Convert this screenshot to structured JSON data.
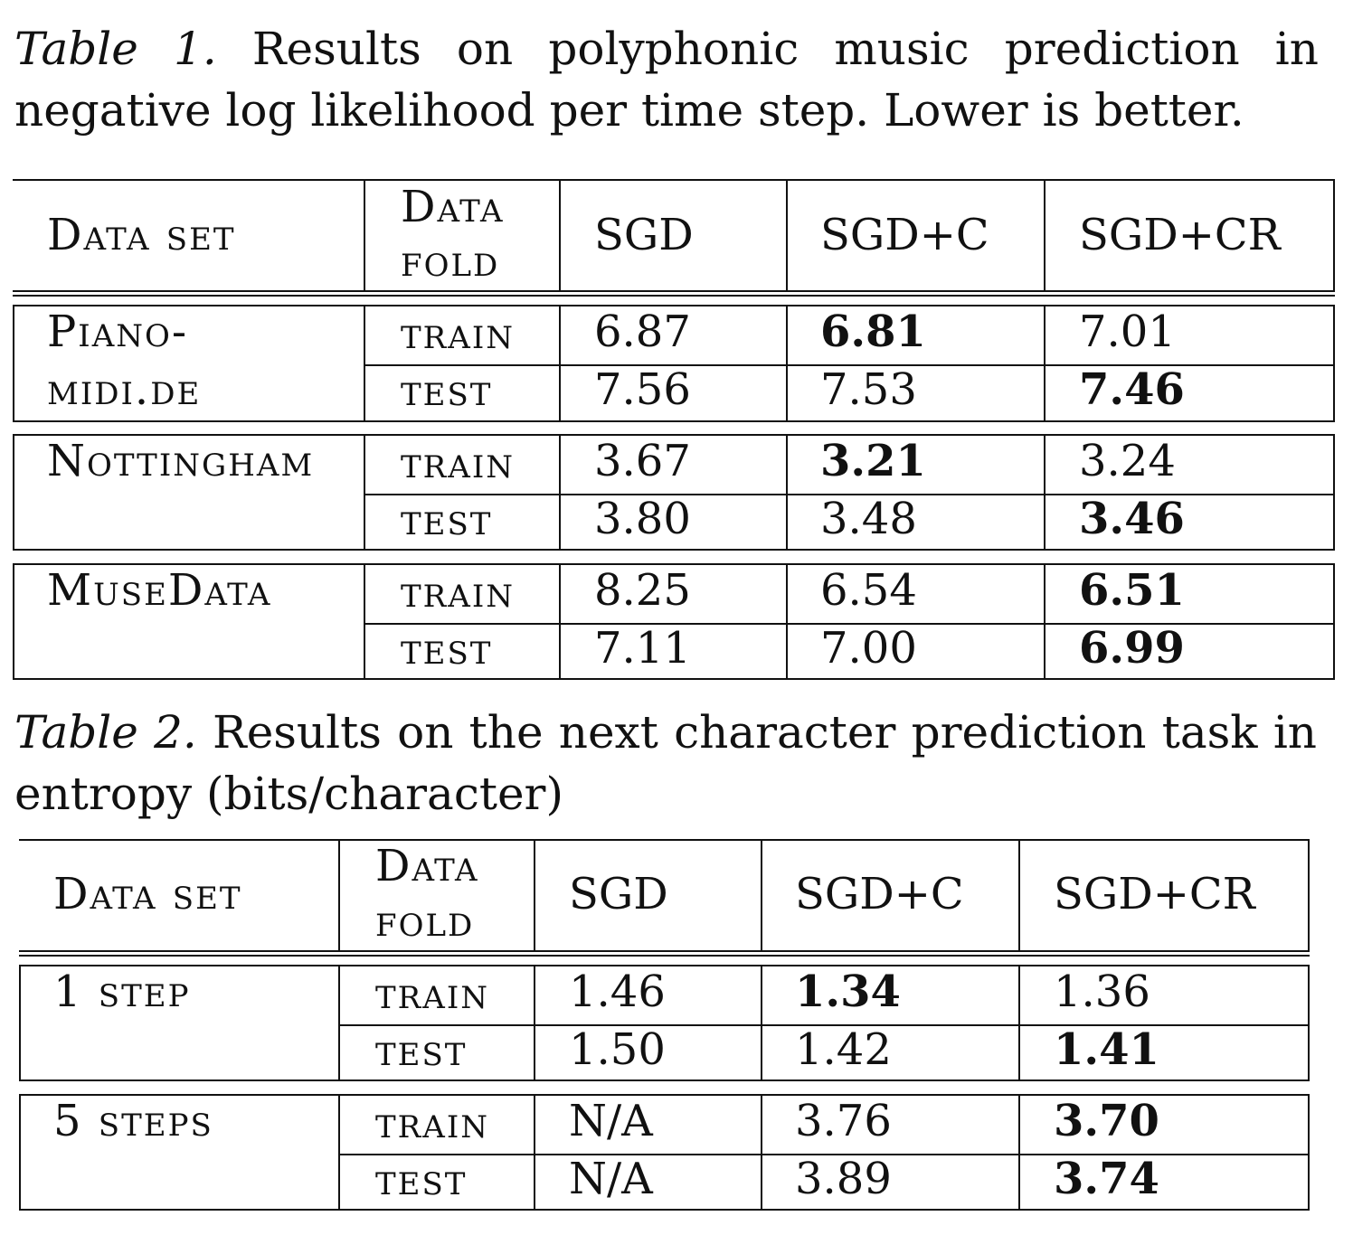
{
  "table1": {
    "caption_label": "Table 1.",
    "caption_text": " Results on polyphonic music prediction in negative log likelihood per time step. Lower is better.",
    "headers": {
      "dataset": "Data set",
      "fold_line1": "Data",
      "fold_line2": "fold",
      "sgd": "SGD",
      "sgdc": "SGD+C",
      "sgdcr": "SGD+CR"
    },
    "rows": [
      {
        "dataset_line1": "Piano-",
        "dataset_line2": "midi.de",
        "folds": [
          {
            "fold": "train",
            "sgd": "6.87",
            "sgdc": "6.81",
            "sgdcr": "7.01"
          },
          {
            "fold": "test",
            "sgd": "7.56",
            "sgdc": "7.53",
            "sgdcr": "7.46"
          }
        ]
      },
      {
        "dataset_line1": "Nottingham",
        "dataset_line2": "",
        "folds": [
          {
            "fold": "train",
            "sgd": "3.67",
            "sgdc": "3.21",
            "sgdcr": "3.24"
          },
          {
            "fold": "test",
            "sgd": "3.80",
            "sgdc": "3.48",
            "sgdcr": "3.46"
          }
        ]
      },
      {
        "dataset_line1": "MuseData",
        "dataset_line2": "",
        "folds": [
          {
            "fold": "train",
            "sgd": "8.25",
            "sgdc": "6.54",
            "sgdcr": "6.51"
          },
          {
            "fold": "test",
            "sgd": "7.11",
            "sgdc": "7.00",
            "sgdcr": "6.99"
          }
        ]
      }
    ]
  },
  "table2": {
    "caption_label": "Table 2.",
    "caption_text": " Results on the next character prediction task in entropy (bits/character)",
    "headers": {
      "dataset": "Data set",
      "fold_line1": "Data",
      "fold_line2": "fold",
      "sgd": "SGD",
      "sgdc": "SGD+C",
      "sgdcr": "SGD+CR"
    },
    "rows": [
      {
        "dataset_line1": "1 step",
        "dataset_line2": "",
        "folds": [
          {
            "fold": "train",
            "sgd": "1.46",
            "sgdc": "1.34",
            "sgdcr": "1.36"
          },
          {
            "fold": "test",
            "sgd": "1.50",
            "sgdc": "1.42",
            "sgdcr": "1.41"
          }
        ]
      },
      {
        "dataset_line1": "5 steps",
        "dataset_line2": "",
        "folds": [
          {
            "fold": "train",
            "sgd": "N/A",
            "sgdc": "3.76",
            "sgdcr": "3.70"
          },
          {
            "fold": "test",
            "sgd": "N/A",
            "sgdc": "3.89",
            "sgdcr": "3.74"
          }
        ]
      }
    ]
  }
}
